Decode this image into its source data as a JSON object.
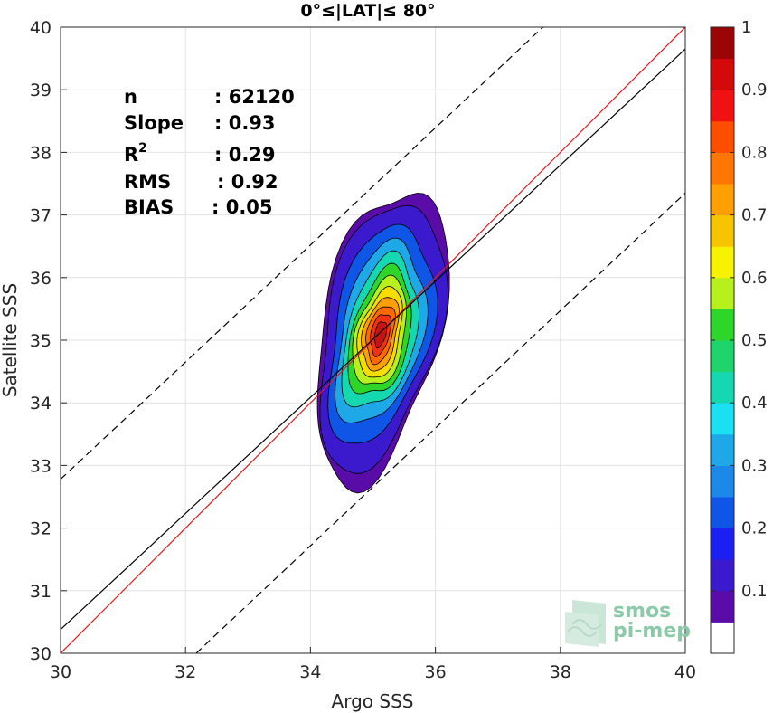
{
  "chart_data": {
    "type": "contour-density-scatter",
    "title": "0°≤|LAT|≤ 80°",
    "xlabel": "Argo SSS",
    "ylabel": "Satellite SSS",
    "xlim": [
      30,
      40
    ],
    "ylim": [
      30,
      40
    ],
    "xticks": [
      "30",
      "32",
      "34",
      "36",
      "38",
      "40"
    ],
    "yticks": [
      "30",
      "31",
      "32",
      "33",
      "34",
      "35",
      "36",
      "37",
      "38",
      "39",
      "40"
    ],
    "grid": true,
    "stats": [
      {
        "label": "n",
        "sep": ": ",
        "value": "62120"
      },
      {
        "label": "Slope",
        "sep": ": ",
        "value": "0.93"
      },
      {
        "label": "R",
        "sup": "2",
        "sep": ": ",
        "value": "0.29"
      },
      {
        "label": "RMS",
        "sep": ": ",
        "value": "0.92"
      },
      {
        "label": "BIAS",
        "sep": ": ",
        "value": "0.05"
      }
    ],
    "lines": [
      {
        "name": "identity",
        "color": "#e41a1c",
        "style": "solid",
        "points": [
          [
            30,
            30
          ],
          [
            40,
            40
          ]
        ]
      },
      {
        "name": "regression",
        "color": "#000000",
        "style": "solid",
        "points": [
          [
            30,
            30.38
          ],
          [
            40,
            39.65
          ]
        ]
      },
      {
        "name": "upper-bound",
        "color": "#000000",
        "style": "dashed",
        "points": [
          [
            30,
            32.78
          ],
          [
            37.72,
            40
          ]
        ]
      },
      {
        "name": "lower-bound",
        "color": "#000000",
        "style": "dashed",
        "points": [
          [
            32.17,
            30
          ],
          [
            40,
            37.35
          ]
        ]
      }
    ],
    "density_center": [
      35.12,
      35.1
    ],
    "density_levels": [
      {
        "level": 0.05,
        "color": "#5a0ca8",
        "ax": 0.96,
        "by": 2.4
      },
      {
        "level": 0.1,
        "color": "#3b19cc",
        "ax": 0.92,
        "by": 2.18
      },
      {
        "level": 0.25,
        "color": "#0f55e6",
        "ax": 0.78,
        "by": 1.78
      },
      {
        "level": 0.35,
        "color": "#1ea8e8",
        "ax": 0.66,
        "by": 1.48
      },
      {
        "level": 0.45,
        "color": "#15d8b0",
        "ax": 0.56,
        "by": 1.24
      },
      {
        "level": 0.55,
        "color": "#2ed62a",
        "ax": 0.47,
        "by": 1.04
      },
      {
        "level": 0.6,
        "color": "#b7f01c",
        "ax": 0.4,
        "by": 0.88
      },
      {
        "level": 0.7,
        "color": "#f7dc00",
        "ax": 0.33,
        "by": 0.74
      },
      {
        "level": 0.75,
        "color": "#ffa000",
        "ax": 0.27,
        "by": 0.6
      },
      {
        "level": 0.8,
        "color": "#ff6a00",
        "ax": 0.21,
        "by": 0.47
      },
      {
        "level": 0.85,
        "color": "#ef3312",
        "ax": 0.15,
        "by": 0.34
      },
      {
        "level": 0.9,
        "color": "#c41414",
        "ax": 0.09,
        "by": 0.21
      }
    ],
    "colorbar": {
      "range": [
        0,
        1
      ],
      "ticks": [
        "0.1",
        "0.2",
        "0.3",
        "0.4",
        "0.5",
        "0.6",
        "0.7",
        "0.8",
        "0.9",
        "1"
      ],
      "colors": [
        "#ffffff",
        "#5a0ca8",
        "#3b19cc",
        "#1c1ff2",
        "#0f55e6",
        "#1c88ea",
        "#1ea8e8",
        "#19e0f2",
        "#15d8b0",
        "#1fd46a",
        "#2ed62a",
        "#b7f01c",
        "#f7f200",
        "#f7c400",
        "#ffa000",
        "#ff7600",
        "#ff4e00",
        "#f01212",
        "#d40a0a",
        "#9c0505"
      ]
    }
  },
  "watermark": {
    "line1": "smos",
    "line2": "pi-mep"
  }
}
